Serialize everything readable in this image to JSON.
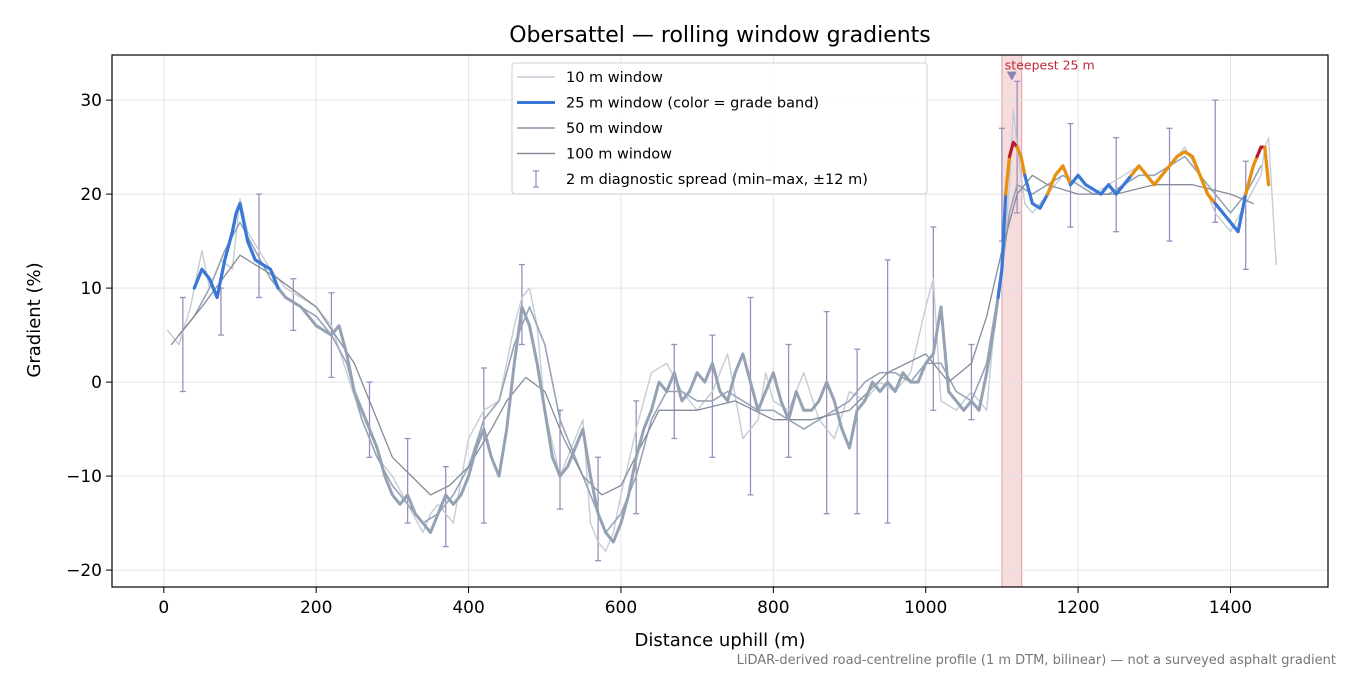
{
  "chart_data": {
    "type": "line",
    "title": "Obersattel — rolling window gradients",
    "xlabel": "Distance uphill (m)",
    "ylabel": "Gradient (%)",
    "footnote": "LiDAR-derived road-centreline profile (1 m DTM, bilinear) — not a surveyed asphalt gradient",
    "xlim": [
      -68,
      1528
    ],
    "ylim": [
      -21.8,
      34.8
    ],
    "xticks": [
      0,
      200,
      400,
      600,
      800,
      1000,
      1200,
      1400
    ],
    "yticks": [
      -20,
      -10,
      0,
      10,
      20,
      30
    ],
    "xtick_labels": [
      "0",
      "200",
      "400",
      "600",
      "800",
      "1000",
      "1200",
      "1400"
    ],
    "ytick_labels": [
      "−20",
      "−10",
      "0",
      "10",
      "20",
      "30"
    ],
    "grid": true,
    "legend_position": "top-center",
    "colors": {
      "w10": "#c6ccd6",
      "w25_default": "#94a2b4",
      "w50": "#98a4b8",
      "w100": "#848c98",
      "spread": "#9a90bc",
      "band_blue": "#3a78d8",
      "band_orange": "#e8900c",
      "band_red": "#b81c2c",
      "highlight": "#f2c4c8"
    },
    "legend": [
      {
        "label": "10 m window",
        "key": "w10"
      },
      {
        "label": "25 m window (color = grade band)",
        "key": "w25"
      },
      {
        "label": "50 m window",
        "key": "w50"
      },
      {
        "label": "100 m window",
        "key": "w100"
      },
      {
        "label": "2 m diagnostic spread (min–max, ±12 m)",
        "key": "spread"
      }
    ],
    "annotation": {
      "text": "steepest 25 m",
      "x": 1113,
      "y": 32.5,
      "band": [
        1100,
        1126
      ]
    },
    "series": [
      {
        "name": "10 m window",
        "x": [
          5,
          20,
          35,
          50,
          60,
          75,
          90,
          100,
          110,
          125,
          140,
          160,
          180,
          200,
          220,
          240,
          260,
          280,
          300,
          320,
          340,
          350,
          360,
          380,
          400,
          420,
          440,
          460,
          470,
          480,
          490,
          500,
          520,
          540,
          550,
          560,
          570,
          580,
          590,
          600,
          620,
          640,
          660,
          680,
          700,
          720,
          740,
          760,
          780,
          790,
          800,
          820,
          840,
          860,
          880,
          900,
          920,
          940,
          960,
          980,
          1000,
          1010,
          1020,
          1040,
          1060,
          1080,
          1090,
          1100,
          1110,
          1115,
          1120,
          1130,
          1140,
          1160,
          1180,
          1200,
          1220,
          1240,
          1260,
          1280,
          1300,
          1320,
          1340,
          1360,
          1380,
          1400,
          1420,
          1440,
          1445,
          1450,
          1460
        ],
        "y": [
          5.5,
          4,
          8,
          14,
          10,
          13,
          12,
          19.5,
          16,
          14,
          12,
          10,
          9,
          8,
          6,
          1,
          -4,
          -8,
          -10,
          -13,
          -16,
          -14,
          -13,
          -15,
          -6,
          -3,
          -2,
          6,
          9,
          10,
          6,
          -3,
          -10,
          -6,
          -4,
          -15,
          -17,
          -18,
          -16,
          -12,
          -5,
          1,
          2,
          -1,
          -3,
          -1,
          3,
          -6,
          -4,
          1,
          -2,
          -3,
          1,
          -4,
          -6,
          -1,
          -2,
          0,
          -1,
          1,
          8,
          11,
          -2,
          -3,
          -1,
          -3,
          6,
          11,
          21,
          29,
          25,
          19,
          18,
          20,
          22,
          21,
          20,
          21,
          22,
          23,
          21,
          23,
          25,
          22,
          18,
          16,
          19,
          22,
          25,
          26,
          12.5
        ]
      },
      {
        "name": "25 m window",
        "x": [
          40,
          50,
          60,
          70,
          80,
          90,
          95,
          100,
          105,
          110,
          115,
          120,
          130,
          140,
          150,
          160,
          170,
          180,
          200,
          220,
          230,
          240,
          250,
          260,
          270,
          280,
          290,
          300,
          310,
          320,
          330,
          340,
          350,
          360,
          370,
          380,
          390,
          400,
          410,
          420,
          430,
          440,
          450,
          460,
          470,
          480,
          490,
          500,
          510,
          520,
          530,
          540,
          550,
          560,
          570,
          580,
          590,
          600,
          610,
          620,
          630,
          640,
          650,
          660,
          670,
          680,
          690,
          700,
          710,
          720,
          730,
          740,
          750,
          760,
          770,
          780,
          790,
          800,
          810,
          820,
          830,
          840,
          850,
          860,
          870,
          880,
          890,
          900,
          910,
          920,
          930,
          940,
          950,
          960,
          970,
          980,
          990,
          1000,
          1010,
          1020,
          1030,
          1040,
          1050,
          1060,
          1070,
          1080,
          1090,
          1100,
          1105,
          1110,
          1115,
          1120,
          1125,
          1130,
          1140,
          1150,
          1160,
          1170,
          1180,
          1190,
          1200,
          1210,
          1220,
          1230,
          1240,
          1250,
          1260,
          1270,
          1280,
          1290,
          1300,
          1310,
          1320,
          1330,
          1340,
          1350,
          1360,
          1370,
          1380,
          1390,
          1400,
          1410,
          1420,
          1430,
          1440,
          1445,
          1450
        ],
        "y": [
          10,
          12,
          11,
          9,
          13,
          16,
          18,
          19,
          17,
          15,
          14,
          13,
          12.5,
          12,
          10,
          9,
          8.5,
          8,
          6,
          5,
          6,
          3,
          -1,
          -3,
          -5,
          -7,
          -10,
          -12,
          -13,
          -12,
          -14,
          -15,
          -16,
          -14,
          -12,
          -13,
          -12,
          -10,
          -7,
          -5,
          -8,
          -10,
          -5,
          2,
          8,
          6,
          2,
          -3,
          -8,
          -10,
          -9,
          -7,
          -5,
          -10,
          -14,
          -16,
          -17,
          -15,
          -12,
          -8,
          -5,
          -3,
          0,
          -1,
          1,
          -2,
          -1,
          1,
          0,
          2,
          -1,
          -2,
          1,
          3,
          0,
          -3,
          -1,
          1,
          -2,
          -4,
          -1,
          -3,
          -3,
          -2,
          0,
          -2,
          -5,
          -7,
          -3,
          -2,
          0,
          -1,
          0,
          -1,
          1,
          0,
          0,
          2,
          3,
          8,
          -1,
          -2,
          -3,
          -2,
          -3,
          1,
          6,
          12,
          20,
          24,
          25.5,
          25,
          24,
          22,
          19,
          18.5,
          20,
          22,
          23,
          21,
          22,
          21,
          20.5,
          20,
          21,
          20,
          21,
          22,
          23,
          22,
          21,
          22,
          23,
          24,
          24.5,
          24,
          22,
          20,
          19,
          18,
          17,
          16,
          20,
          23,
          25,
          25,
          21
        ]
      },
      {
        "name": "50 m window",
        "x": [
          20,
          40,
          60,
          80,
          100,
          120,
          140,
          160,
          180,
          200,
          220,
          240,
          260,
          280,
          300,
          320,
          340,
          360,
          380,
          400,
          420,
          440,
          460,
          480,
          500,
          520,
          540,
          560,
          580,
          600,
          620,
          640,
          660,
          680,
          700,
          720,
          740,
          760,
          780,
          800,
          820,
          840,
          860,
          880,
          900,
          920,
          940,
          960,
          980,
          1000,
          1020,
          1040,
          1060,
          1080,
          1100,
          1110,
          1120,
          1140,
          1160,
          1180,
          1200,
          1220,
          1240,
          1260,
          1280,
          1300,
          1320,
          1340,
          1360,
          1380,
          1400,
          1420,
          1440
        ],
        "y": [
          5,
          7,
          10,
          14,
          17,
          14,
          11,
          9,
          8,
          7,
          5,
          2,
          -4,
          -8,
          -11,
          -13,
          -15,
          -14,
          -12,
          -9,
          -4,
          -2,
          4,
          8,
          4,
          -4,
          -8,
          -12,
          -16,
          -14,
          -10,
          -4,
          -1,
          -1,
          -2,
          -2,
          -1,
          -2,
          -3,
          -3,
          -4,
          -5,
          -4,
          -3,
          -2,
          0,
          1,
          1,
          0,
          2,
          2,
          -1,
          -2,
          2,
          12,
          18,
          21,
          20,
          21,
          22,
          21,
          20,
          20,
          21,
          22,
          22,
          23,
          24,
          22,
          20,
          18,
          20,
          23
        ]
      },
      {
        "name": "100 m window",
        "x": [
          10,
          50,
          100,
          150,
          200,
          250,
          300,
          350,
          375,
          400,
          430,
          450,
          475,
          500,
          525,
          550,
          575,
          600,
          625,
          650,
          700,
          750,
          800,
          850,
          900,
          950,
          1000,
          1030,
          1060,
          1080,
          1100,
          1120,
          1140,
          1160,
          1200,
          1250,
          1300,
          1350,
          1400,
          1430
        ],
        "y": [
          4,
          8,
          13.5,
          11,
          8,
          2,
          -8,
          -12,
          -11,
          -9,
          -5,
          -2,
          0.5,
          -1,
          -6,
          -10,
          -12,
          -11,
          -7,
          -3,
          -3,
          -2,
          -4,
          -4,
          -3,
          1,
          3,
          0,
          2,
          7,
          14,
          20,
          22,
          21,
          20,
          20,
          21,
          21,
          20,
          19
        ]
      }
    ],
    "grade_band_segments": [
      {
        "band": "blue",
        "x": [
          40,
          50,
          60,
          70,
          80,
          90,
          95,
          100,
          105,
          110,
          115,
          120,
          130,
          140,
          150
        ]
      },
      {
        "band": "blue",
        "x": [
          1095,
          1100,
          1105
        ]
      },
      {
        "band": "orange",
        "x": [
          1105,
          1110
        ]
      },
      {
        "band": "red",
        "x": [
          1110,
          1115,
          1120
        ]
      },
      {
        "band": "orange",
        "x": [
          1120,
          1125,
          1130
        ]
      },
      {
        "band": "blue",
        "x": [
          1130,
          1140,
          1150,
          1160
        ]
      },
      {
        "band": "orange",
        "x": [
          1160,
          1170,
          1180,
          1190
        ]
      },
      {
        "band": "blue",
        "x": [
          1190,
          1200,
          1210,
          1220,
          1230,
          1240,
          1250,
          1260,
          1270
        ]
      },
      {
        "band": "orange",
        "x": [
          1270,
          1280,
          1290,
          1300,
          1310,
          1320,
          1330,
          1340,
          1350,
          1360,
          1370,
          1380
        ]
      },
      {
        "band": "blue",
        "x": [
          1380,
          1390,
          1400,
          1410,
          1420
        ]
      },
      {
        "band": "orange",
        "x": [
          1420,
          1430,
          1435
        ]
      },
      {
        "band": "red",
        "x": [
          1435,
          1440,
          1445
        ]
      },
      {
        "band": "orange",
        "x": [
          1445,
          1450
        ]
      }
    ],
    "spread_bars": {
      "x": [
        25,
        75,
        125,
        170,
        220,
        270,
        320,
        370,
        420,
        470,
        520,
        570,
        620,
        670,
        720,
        770,
        820,
        870,
        910,
        950,
        1010,
        1060,
        1100,
        1120,
        1190,
        1250,
        1320,
        1380,
        1420
      ],
      "low": [
        -1,
        5,
        9,
        5.5,
        0.5,
        -8,
        -15,
        -17.5,
        -15,
        4,
        -13.5,
        -19,
        -14,
        -6,
        -8,
        -12,
        -8,
        -14,
        -14,
        -15,
        -3,
        -4,
        15,
        18,
        16.5,
        16,
        15,
        17,
        12
      ],
      "high": [
        9,
        10,
        20,
        11,
        9.5,
        0,
        -6,
        -9,
        1.5,
        12.5,
        -3,
        -8,
        -2,
        4,
        5,
        9,
        4,
        7.5,
        3.5,
        13,
        16.5,
        4,
        27,
        32,
        27.5,
        26,
        27,
        30,
        23.5
      ]
    }
  }
}
